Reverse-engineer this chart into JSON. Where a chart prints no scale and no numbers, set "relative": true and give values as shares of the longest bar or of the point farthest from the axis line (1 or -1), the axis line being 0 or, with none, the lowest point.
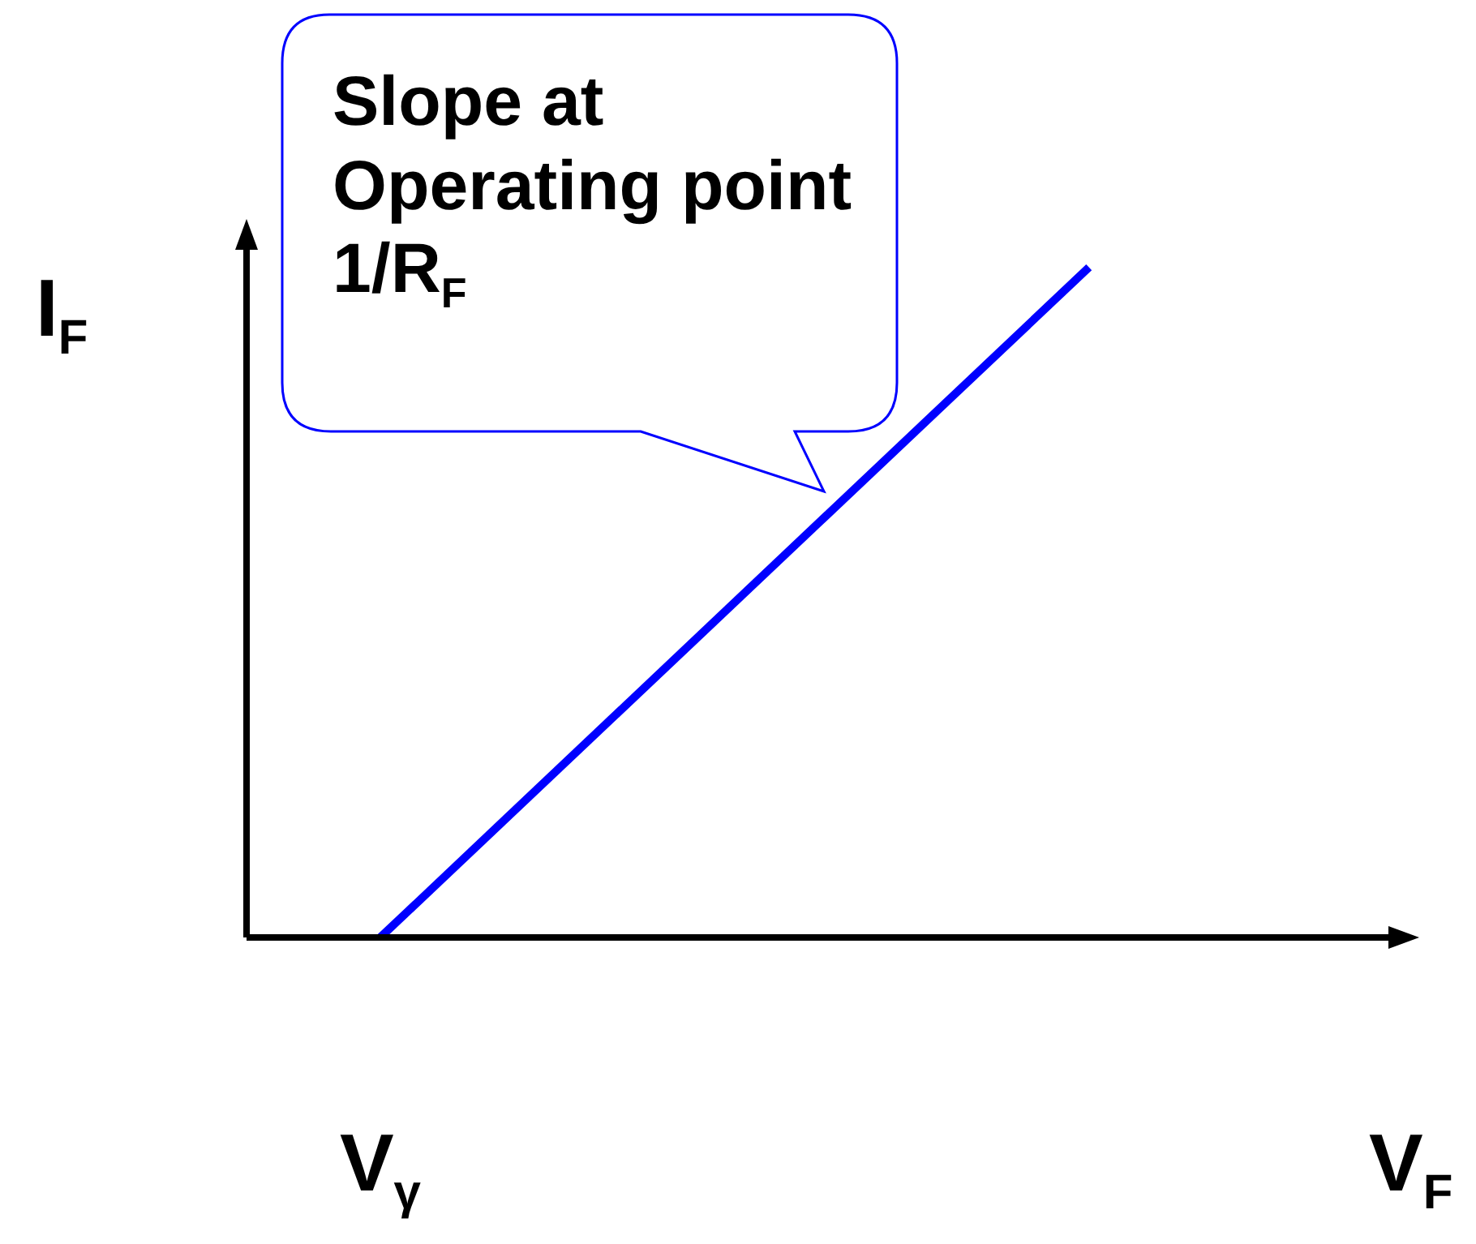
{
  "chart_data": {
    "type": "line",
    "ylabel": "I$_{F}$",
    "relative": true,
    "tick_labels": "x",
    "categories": [
      null,
      null,
      "V$_{γ}$",
      null,
      null,
      null,
      null,
      null,
      null,
      null,
      null,
      null,
      null,
      null,
      null,
      null,
      null,
      null,
      "V$_{F}$"
    ],
    "series": [
      {
        "color": "#0000ff",
        "values": [
          null,
          null,
          0,
          null,
          null,
          null,
          null,
          null,
          null,
          null,
          null,
          null,
          null,
          1,
          null,
          null,
          null,
          null,
          null
        ]
      }
    ],
    "annotations": [
      "Slope at Operating point 1/R$_{F}$"
    ]
  }
}
